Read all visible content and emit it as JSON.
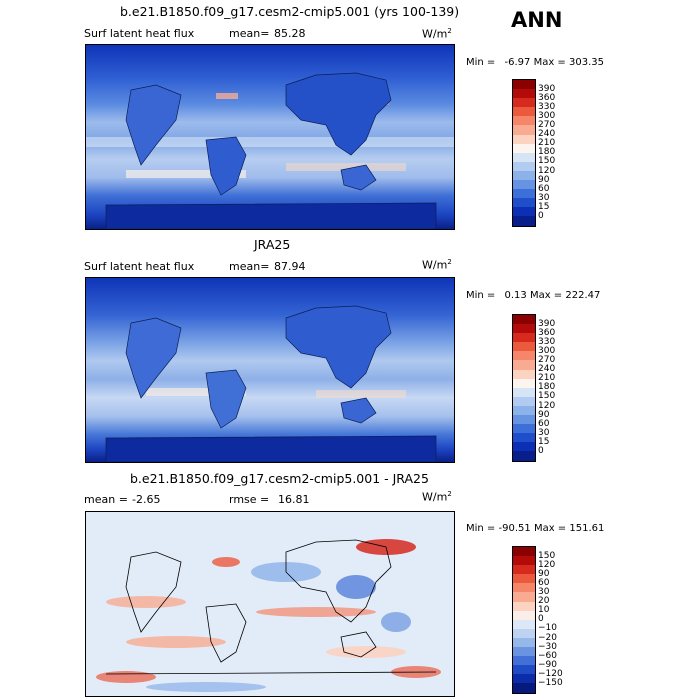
{
  "season": "ANN",
  "panels": [
    {
      "title": "b.e21.B1850.f09_g17.cesm2-cmip5.001 (yrs 100-139)",
      "left_label": "Surf latent heat flux",
      "mean_label": "mean=",
      "mean_value": "85.28",
      "units": "W/m",
      "units_sup": "2",
      "min_label": "Min =",
      "min_value": "-6.97",
      "max_label": "Max =",
      "max_value": "303.35",
      "colorbar_labels": [
        "390",
        "360",
        "330",
        "300",
        "270",
        "240",
        "210",
        "180",
        "150",
        "120",
        "90",
        "60",
        "30",
        "15",
        "0"
      ],
      "colorbar_colors": [
        "#8b0000",
        "#b30a0a",
        "#d62a1e",
        "#ec5a3e",
        "#f5866a",
        "#f9ab92",
        "#fcd3c1",
        "#fbf4ef",
        "#d7e4f6",
        "#b1ccf0",
        "#8cb2ea",
        "#6694e3",
        "#3d6fd9",
        "#1f4ecb",
        "#0c2fb6",
        "#081e8a"
      ]
    },
    {
      "title": "JRA25",
      "left_label": "Surf latent heat flux",
      "mean_label": "mean=",
      "mean_value": "87.94",
      "units": "W/m",
      "units_sup": "2",
      "min_label": "Min =",
      "min_value": "0.13",
      "max_label": "Max =",
      "max_value": "222.47",
      "colorbar_labels": [
        "390",
        "360",
        "330",
        "300",
        "270",
        "240",
        "210",
        "180",
        "150",
        "120",
        "90",
        "60",
        "30",
        "15",
        "0"
      ],
      "colorbar_colors": [
        "#8b0000",
        "#b30a0a",
        "#d62a1e",
        "#ec5a3e",
        "#f5866a",
        "#f9ab92",
        "#fcd3c1",
        "#fbf4ef",
        "#d7e4f6",
        "#b1ccf0",
        "#8cb2ea",
        "#6694e3",
        "#3d6fd9",
        "#1f4ecb",
        "#0c2fb6",
        "#081e8a"
      ]
    },
    {
      "title": "b.e21.B1850.f09_g17.cesm2-cmip5.001 - JRA25",
      "mean_label": "mean =",
      "mean_value": "-2.65",
      "rmse_label": "rmse =",
      "rmse_value": "16.81",
      "units": "W/m",
      "units_sup": "2",
      "min_label": "Min =",
      "min_value": "-90.51",
      "max_label": "Max =",
      "max_value": "151.61",
      "colorbar_labels": [
        "150",
        "120",
        "90",
        "60",
        "30",
        "20",
        "10",
        "0",
        "−10",
        "−20",
        "−30",
        "−60",
        "−90",
        "−120",
        "−150"
      ],
      "colorbar_colors": [
        "#8b0000",
        "#b30a0a",
        "#d62a1e",
        "#ec5a3e",
        "#f5866a",
        "#f9ab92",
        "#fcd3c1",
        "#fbeee8",
        "#dce8f7",
        "#bed3f1",
        "#96b7ea",
        "#6b94e0",
        "#4270d6",
        "#1f4bc6",
        "#0c2daa",
        "#061a7d"
      ]
    }
  ]
}
